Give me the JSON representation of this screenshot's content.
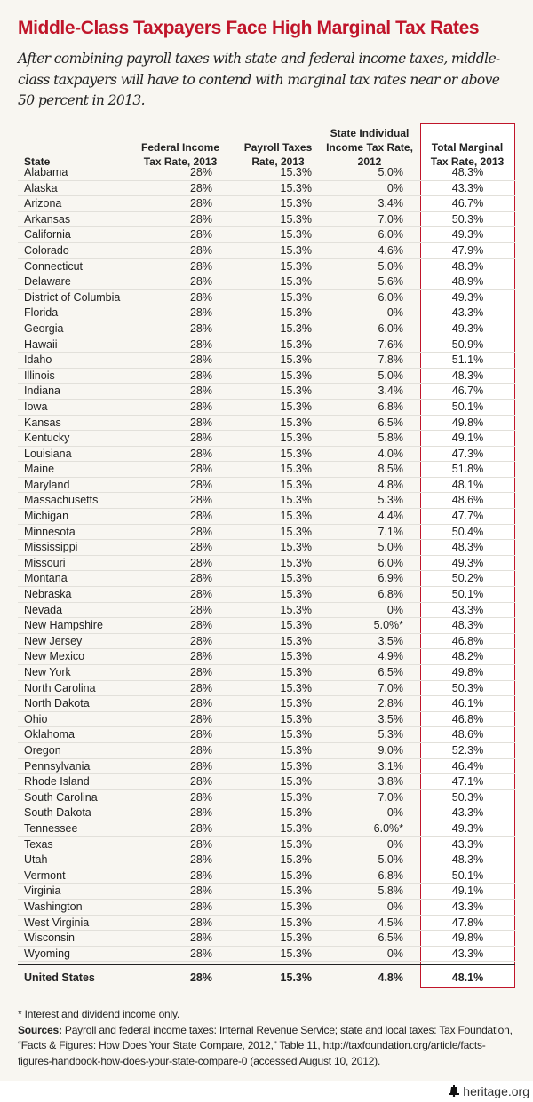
{
  "title": "Middle-Class Taxpayers Face High Marginal Tax Rates",
  "subtitle": "After combining payroll taxes with state and federal income taxes, middle-class taxpayers will have to contend with marginal tax rates near or above 50 percent in 2013.",
  "colors": {
    "accent": "#c0152a",
    "background": "#f8f6f1"
  },
  "chart_data": {
    "type": "table",
    "columns": [
      "State",
      "Federal Income Tax Rate, 2013",
      "Payroll Taxes Rate, 2013",
      "State Individual Income Tax Rate, 2012",
      "Total Marginal Tax Rate, 2013"
    ],
    "rows": [
      [
        "Alabama",
        "28%",
        "15.3%",
        "5.0%",
        "48.3%"
      ],
      [
        "Alaska",
        "28%",
        "15.3%",
        "0%",
        "43.3%"
      ],
      [
        "Arizona",
        "28%",
        "15.3%",
        "3.4%",
        "46.7%"
      ],
      [
        "Arkansas",
        "28%",
        "15.3%",
        "7.0%",
        "50.3%"
      ],
      [
        "California",
        "28%",
        "15.3%",
        "6.0%",
        "49.3%"
      ],
      [
        "Colorado",
        "28%",
        "15.3%",
        "4.6%",
        "47.9%"
      ],
      [
        "Connecticut",
        "28%",
        "15.3%",
        "5.0%",
        "48.3%"
      ],
      [
        "Delaware",
        "28%",
        "15.3%",
        "5.6%",
        "48.9%"
      ],
      [
        "District of Columbia",
        "28%",
        "15.3%",
        "6.0%",
        "49.3%"
      ],
      [
        "Florida",
        "28%",
        "15.3%",
        "0%",
        "43.3%"
      ],
      [
        "Georgia",
        "28%",
        "15.3%",
        "6.0%",
        "49.3%"
      ],
      [
        "Hawaii",
        "28%",
        "15.3%",
        "7.6%",
        "50.9%"
      ],
      [
        "Idaho",
        "28%",
        "15.3%",
        "7.8%",
        "51.1%"
      ],
      [
        "Illinois",
        "28%",
        "15.3%",
        "5.0%",
        "48.3%"
      ],
      [
        "Indiana",
        "28%",
        "15.3%",
        "3.4%",
        "46.7%"
      ],
      [
        "Iowa",
        "28%",
        "15.3%",
        "6.8%",
        "50.1%"
      ],
      [
        "Kansas",
        "28%",
        "15.3%",
        "6.5%",
        "49.8%"
      ],
      [
        "Kentucky",
        "28%",
        "15.3%",
        "5.8%",
        "49.1%"
      ],
      [
        "Louisiana",
        "28%",
        "15.3%",
        "4.0%",
        "47.3%"
      ],
      [
        "Maine",
        "28%",
        "15.3%",
        "8.5%",
        "51.8%"
      ],
      [
        "Maryland",
        "28%",
        "15.3%",
        "4.8%",
        "48.1%"
      ],
      [
        "Massachusetts",
        "28%",
        "15.3%",
        "5.3%",
        "48.6%"
      ],
      [
        "Michigan",
        "28%",
        "15.3%",
        "4.4%",
        "47.7%"
      ],
      [
        "Minnesota",
        "28%",
        "15.3%",
        "7.1%",
        "50.4%"
      ],
      [
        "Mississippi",
        "28%",
        "15.3%",
        "5.0%",
        "48.3%"
      ],
      [
        "Missouri",
        "28%",
        "15.3%",
        "6.0%",
        "49.3%"
      ],
      [
        "Montana",
        "28%",
        "15.3%",
        "6.9%",
        "50.2%"
      ],
      [
        "Nebraska",
        "28%",
        "15.3%",
        "6.8%",
        "50.1%"
      ],
      [
        "Nevada",
        "28%",
        "15.3%",
        "0%",
        "43.3%"
      ],
      [
        "New Hampshire",
        "28%",
        "15.3%",
        "5.0%*",
        "48.3%"
      ],
      [
        "New Jersey",
        "28%",
        "15.3%",
        "3.5%",
        "46.8%"
      ],
      [
        "New Mexico",
        "28%",
        "15.3%",
        "4.9%",
        "48.2%"
      ],
      [
        "New York",
        "28%",
        "15.3%",
        "6.5%",
        "49.8%"
      ],
      [
        "North Carolina",
        "28%",
        "15.3%",
        "7.0%",
        "50.3%"
      ],
      [
        "North Dakota",
        "28%",
        "15.3%",
        "2.8%",
        "46.1%"
      ],
      [
        "Ohio",
        "28%",
        "15.3%",
        "3.5%",
        "46.8%"
      ],
      [
        "Oklahoma",
        "28%",
        "15.3%",
        "5.3%",
        "48.6%"
      ],
      [
        "Oregon",
        "28%",
        "15.3%",
        "9.0%",
        "52.3%"
      ],
      [
        "Pennsylvania",
        "28%",
        "15.3%",
        "3.1%",
        "46.4%"
      ],
      [
        "Rhode Island",
        "28%",
        "15.3%",
        "3.8%",
        "47.1%"
      ],
      [
        "South Carolina",
        "28%",
        "15.3%",
        "7.0%",
        "50.3%"
      ],
      [
        "South Dakota",
        "28%",
        "15.3%",
        "0%",
        "43.3%"
      ],
      [
        "Tennessee",
        "28%",
        "15.3%",
        "6.0%*",
        "49.3%"
      ],
      [
        "Texas",
        "28%",
        "15.3%",
        "0%",
        "43.3%"
      ],
      [
        "Utah",
        "28%",
        "15.3%",
        "5.0%",
        "48.3%"
      ],
      [
        "Vermont",
        "28%",
        "15.3%",
        "6.8%",
        "50.1%"
      ],
      [
        "Virginia",
        "28%",
        "15.3%",
        "5.8%",
        "49.1%"
      ],
      [
        "Washington",
        "28%",
        "15.3%",
        "0%",
        "43.3%"
      ],
      [
        "West Virginia",
        "28%",
        "15.3%",
        "4.5%",
        "47.8%"
      ],
      [
        "Wisconsin",
        "28%",
        "15.3%",
        "6.5%",
        "49.8%"
      ],
      [
        "Wyoming",
        "28%",
        "15.3%",
        "0%",
        "43.3%"
      ]
    ],
    "total_row": [
      "United States",
      "28%",
      "15.3%",
      "4.8%",
      "48.1%"
    ]
  },
  "notes": {
    "footnote": "* Interest and dividend income only.",
    "sources_label": "Sources:",
    "sources_text": " Payroll and federal income taxes: Internal Revenue Service; state and local taxes: Tax Foundation, “Facts & Figures: How Does Your State Compare, 2012,” Table 11, http://taxfoundation.org/article/facts-figures-handbook-how-does-your-state-compare-0 (accessed August 10, 2012)."
  },
  "footer": {
    "logo_text": "heritage.org",
    "logo_icon": "liberty-bell-icon"
  }
}
